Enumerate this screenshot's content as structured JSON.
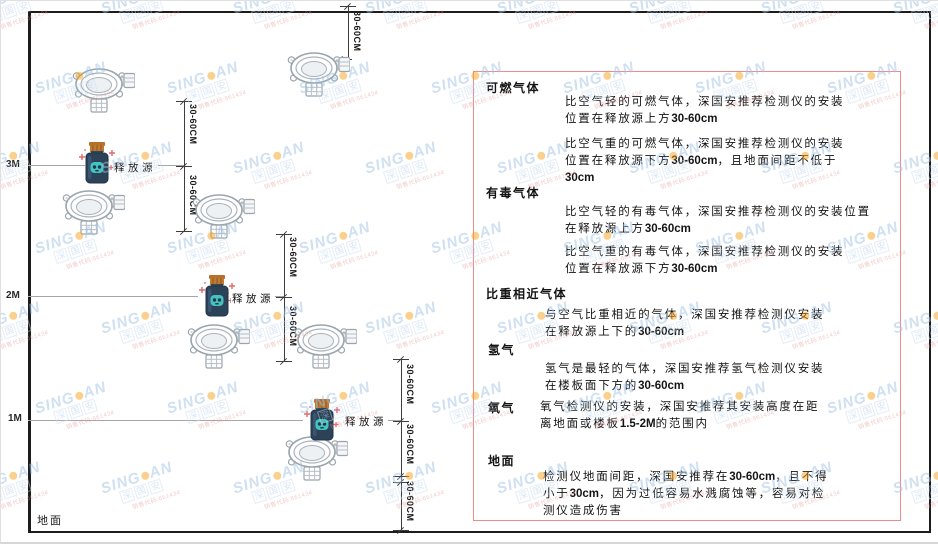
{
  "colors": {
    "panel_border": "#ef8b8b",
    "watermark_blue": "#9fc3e4",
    "dot_orange": "#f6a21d",
    "spark_red": "#e06a6a",
    "source_body_navy": "#2c4257",
    "source_cap_orange": "#c07a30",
    "source_face_teal": "#45c3c0",
    "detector_outline_gray": "#9aa5ad",
    "frame_black": "#1c1c1c",
    "level_line_gray": "#a6a6a6"
  },
  "watermark": {
    "brand_left": "SING",
    "brand_right": "AN",
    "cjk_chars": [
      "深",
      "国",
      "安"
    ],
    "contact": "销售代码:661434"
  },
  "diagram": {
    "levels": [
      {
        "label": "3M"
      },
      {
        "label": "2M"
      },
      {
        "label": "1M"
      }
    ],
    "ground_label": "地面",
    "source_label": "释放源",
    "dim_label": "30-60CM"
  },
  "panel": {
    "blocks": [
      {
        "kind": "heading",
        "text": "可燃气体"
      },
      {
        "kind": "para",
        "lines": [
          "比空气轻的可燃气体，深国安推荐检测仪的安装",
          "位置在释放源上方30-60cm"
        ]
      },
      {
        "kind": "para",
        "lines": [
          "比空气重的可燃气体，深国安推荐检测仪的安装",
          "位置在释放源下方30-60cm，且地面间距不低于",
          "30cm"
        ]
      },
      {
        "kind": "heading",
        "text": "有毒气体"
      },
      {
        "kind": "para",
        "lines": [
          "比空气轻的有毒气体，深国安推荐检测仪的安装位置",
          "在释放源上方30-60cm"
        ]
      },
      {
        "kind": "para",
        "lines": [
          "比空气重的有毒气体，深国安推荐检测仪的安装",
          "位置在释放源下方30-60cm"
        ]
      },
      {
        "kind": "heading",
        "text": "比重相近气体"
      },
      {
        "kind": "para",
        "lines": [
          "与空气比重相近的气体，深国安推荐检测仪安装",
          "在释放源上下的30-60cm"
        ]
      },
      {
        "kind": "heading",
        "text": "氢气"
      },
      {
        "kind": "para",
        "lines": [
          "氢气是最轻的气体，深国安推荐氢气检测仪安装",
          "在楼板面下方的30-60cm"
        ]
      },
      {
        "kind": "heading",
        "text": "氧气"
      },
      {
        "kind": "para",
        "lines": [
          "氧气检测仪的安装，深国安推荐其安装高度在距",
          "离地面或楼板1.5-2M的范围内"
        ]
      },
      {
        "kind": "heading",
        "text": "地面"
      },
      {
        "kind": "para",
        "lines": [
          "检测仪地面间距，深国安推荐在30-60cm，且不得",
          "小于30cm，因为过低容易水溅腐蚀等，容易对检",
          "测仪造成伤害"
        ]
      }
    ]
  }
}
